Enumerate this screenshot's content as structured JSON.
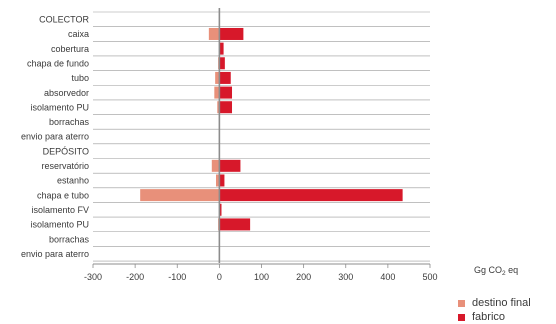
{
  "chart_data": {
    "type": "bar",
    "orientation": "horizontal",
    "stacked": false,
    "categories": [
      "COLECTOR",
      "caixa",
      "cobertura",
      "chapa de fundo",
      "tubo",
      "absorvedor",
      "isolamento PU",
      "borrachas",
      "envio para aterro",
      "DEPÓSITO",
      "reservatório",
      "estanho",
      "chapa e tubo",
      "isolamento FV",
      "isolamento PU",
      "borrachas",
      "envio para aterro"
    ],
    "series": [
      {
        "name": "destino final",
        "color": "#e8907a",
        "values": [
          0,
          -25,
          0,
          -3,
          -10,
          -12,
          -5,
          0,
          0,
          0,
          -18,
          -8,
          -188,
          0,
          -3,
          0,
          0
        ]
      },
      {
        "name": "fabrico",
        "color": "#d7182a",
        "values": [
          0,
          57,
          10,
          13,
          27,
          30,
          30,
          0,
          0,
          0,
          50,
          12,
          435,
          5,
          73,
          0,
          0
        ]
      }
    ],
    "xlim": [
      -300,
      500
    ],
    "xticks": [
      -300,
      -200,
      -100,
      0,
      100,
      200,
      300,
      400,
      500
    ],
    "xlabel": "Gg CO2 eq",
    "grid": true,
    "legend_position": "bottom-right"
  }
}
